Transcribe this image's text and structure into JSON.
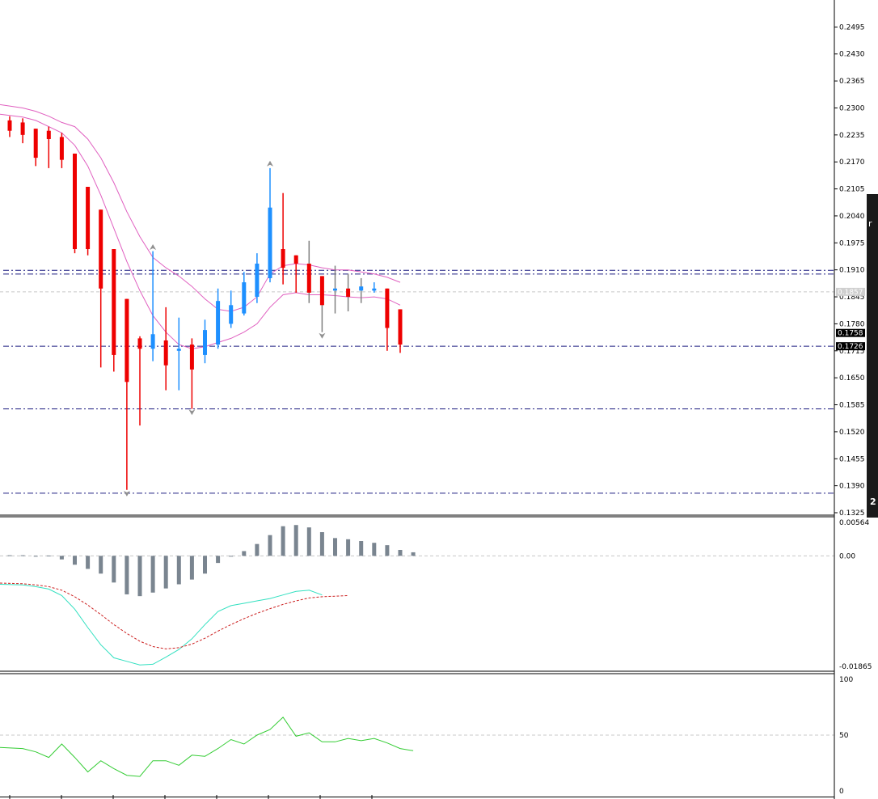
{
  "chart_data": [
    {
      "type": "candlestick",
      "ylim": [
        0.1325,
        0.256
      ],
      "y_ticks": [
        "0.2495",
        "0.2430",
        "0.2365",
        "0.2300",
        "0.2235",
        "0.2170",
        "0.2105",
        "0.2040",
        "0.1975",
        "0.1910",
        "0.1845",
        "0.1780",
        "0.1715",
        "0.1650",
        "0.1585",
        "0.1520",
        "0.1455",
        "0.1390",
        "0.1325"
      ],
      "price_tags": [
        {
          "text": "0.1857",
          "value": 0.1857,
          "style": "bid",
          "bg": "#cfcfcf",
          "fg": "#ffffff"
        },
        {
          "text": "0.1758",
          "value": 0.1758,
          "style": "mark",
          "bg": "#000000",
          "fg": "#ffffff"
        },
        {
          "text": "0.1726",
          "value": 0.1726,
          "style": "mark",
          "bg": "#000000",
          "fg": "#ffffff"
        }
      ],
      "levels": [
        0.1909,
        0.19,
        0.1726,
        0.1575,
        0.1372
      ],
      "bid_line": 0.1857,
      "candles": [
        {
          "o": 0.227,
          "h": 0.228,
          "l": 0.223,
          "c": 0.2245
        },
        {
          "o": 0.2265,
          "h": 0.2275,
          "l": 0.2215,
          "c": 0.2235
        },
        {
          "o": 0.225,
          "h": 0.225,
          "l": 0.216,
          "c": 0.218
        },
        {
          "o": 0.2245,
          "h": 0.2255,
          "l": 0.2155,
          "c": 0.2225
        },
        {
          "o": 0.223,
          "h": 0.224,
          "l": 0.2155,
          "c": 0.2175
        },
        {
          "o": 0.219,
          "h": 0.219,
          "l": 0.195,
          "c": 0.196
        },
        {
          "o": 0.211,
          "h": 0.211,
          "l": 0.1945,
          "c": 0.196
        },
        {
          "o": 0.2055,
          "h": 0.2055,
          "l": 0.1675,
          "c": 0.1865
        },
        {
          "o": 0.196,
          "h": 0.196,
          "l": 0.1665,
          "c": 0.1705
        },
        {
          "o": 0.184,
          "h": 0.184,
          "l": 0.138,
          "c": 0.164
        },
        {
          "o": 0.1745,
          "h": 0.175,
          "l": 0.1535,
          "c": 0.172
        },
        {
          "o": 0.172,
          "h": 0.1955,
          "l": 0.169,
          "c": 0.1755
        },
        {
          "o": 0.174,
          "h": 0.182,
          "l": 0.162,
          "c": 0.168
        },
        {
          "o": 0.1715,
          "h": 0.1795,
          "l": 0.162,
          "c": 0.172
        },
        {
          "o": 0.173,
          "h": 0.1745,
          "l": 0.1575,
          "c": 0.167
        },
        {
          "o": 0.1705,
          "h": 0.179,
          "l": 0.1685,
          "c": 0.1765
        },
        {
          "o": 0.173,
          "h": 0.1865,
          "l": 0.172,
          "c": 0.1835
        },
        {
          "o": 0.178,
          "h": 0.186,
          "l": 0.177,
          "c": 0.1825
        },
        {
          "o": 0.1805,
          "h": 0.1905,
          "l": 0.18,
          "c": 0.188
        },
        {
          "o": 0.1845,
          "h": 0.195,
          "l": 0.183,
          "c": 0.1925
        },
        {
          "o": 0.189,
          "h": 0.2155,
          "l": 0.188,
          "c": 0.206
        },
        {
          "o": 0.196,
          "h": 0.2095,
          "l": 0.1875,
          "c": 0.1915
        },
        {
          "o": 0.1945,
          "h": 0.1945,
          "l": 0.1855,
          "c": 0.1925
        },
        {
          "o": 0.1925,
          "h": 0.198,
          "l": 0.183,
          "c": 0.1855
        },
        {
          "o": 0.1895,
          "h": 0.1895,
          "l": 0.176,
          "c": 0.1825
        },
        {
          "o": 0.186,
          "h": 0.192,
          "l": 0.1805,
          "c": 0.1865
        },
        {
          "o": 0.1865,
          "h": 0.19,
          "l": 0.181,
          "c": 0.1845
        },
        {
          "o": 0.186,
          "h": 0.189,
          "l": 0.183,
          "c": 0.187
        },
        {
          "o": 0.186,
          "h": 0.188,
          "l": 0.1855,
          "c": 0.1865
        },
        {
          "o": 0.1865,
          "h": 0.1865,
          "l": 0.1715,
          "c": 0.177
        },
        {
          "o": 0.1815,
          "h": 0.1815,
          "l": 0.171,
          "c": 0.173
        }
      ],
      "band_upper": [
        0.2308,
        0.23,
        0.2292,
        0.228,
        0.2265,
        0.2255,
        0.2225,
        0.218,
        0.212,
        0.205,
        0.199,
        0.194,
        0.1915,
        0.1895,
        0.187,
        0.184,
        0.1815,
        0.181,
        0.182,
        0.1845,
        0.19,
        0.192,
        0.1925,
        0.1922,
        0.1915,
        0.191,
        0.191,
        0.1905,
        0.19,
        0.1892,
        0.188
      ],
      "band_lower": [
        0.2285,
        0.2278,
        0.227,
        0.2255,
        0.224,
        0.221,
        0.216,
        0.209,
        0.201,
        0.193,
        0.186,
        0.18,
        0.176,
        0.173,
        0.172,
        0.1725,
        0.1735,
        0.1745,
        0.176,
        0.178,
        0.182,
        0.185,
        0.1855,
        0.185,
        0.185,
        0.1848,
        0.1845,
        0.1843,
        0.1845,
        0.184,
        0.1825
      ],
      "fractals_up": [
        {
          "i": 11,
          "v": 0.1962
        },
        {
          "i": 20,
          "v": 0.2163
        }
      ],
      "fractals_down": [
        {
          "i": 9,
          "v": 0.1374
        },
        {
          "i": 14,
          "v": 0.157
        },
        {
          "i": 24,
          "v": 0.1754
        }
      ]
    },
    {
      "type": "macd",
      "ylim": [
        -0.01865,
        0.00564
      ],
      "y_ticks": [
        "0.00564",
        "0.00",
        "-0.01865"
      ],
      "histogram": [
        0.0001,
        0.0001,
        0.0,
        5e-05,
        -0.0006,
        -0.0015,
        -0.0022,
        -0.003,
        -0.0045,
        -0.0065,
        -0.0068,
        -0.0062,
        -0.0055,
        -0.0048,
        -0.004,
        -0.003,
        -0.0012,
        0.0,
        0.0008,
        0.002,
        0.0035,
        0.005,
        0.0052,
        0.0048,
        0.004,
        0.003,
        0.0028,
        0.0025,
        0.0022,
        0.0018,
        0.001,
        0.0006
      ],
      "macd_line": [
        -0.0048,
        -0.0049,
        -0.0052,
        -0.0056,
        -0.0067,
        -0.009,
        -0.0121,
        -0.015,
        -0.0172,
        -0.0178,
        -0.0184,
        -0.0183,
        -0.0171,
        -0.0158,
        -0.014,
        -0.0116,
        -0.0094,
        -0.0084,
        -0.008,
        -0.0076,
        -0.0072,
        -0.0066,
        -0.006,
        -0.0058,
        -0.0066
      ],
      "signal_line": [
        -0.0046,
        -0.0047,
        -0.0049,
        -0.0052,
        -0.0058,
        -0.0069,
        -0.0083,
        -0.0099,
        -0.0116,
        -0.0131,
        -0.0144,
        -0.0153,
        -0.0157,
        -0.0155,
        -0.0149,
        -0.0139,
        -0.0127,
        -0.0116,
        -0.0106,
        -0.0097,
        -0.0089,
        -0.0082,
        -0.0076,
        -0.0071,
        -0.0069,
        -0.0068,
        -0.0067
      ]
    },
    {
      "type": "line",
      "ylim": [
        0,
        100
      ],
      "y_ticks": [
        "100",
        "50",
        "0"
      ],
      "ref_level": 50,
      "values": [
        39,
        38,
        35,
        30,
        42,
        30,
        17,
        27,
        20,
        14,
        13,
        27,
        27,
        23,
        32,
        31,
        38,
        46,
        42,
        50,
        55,
        66,
        49,
        52,
        44,
        44,
        47,
        45,
        47,
        43,
        38,
        36
      ]
    }
  ],
  "colors": {
    "bull": "#1e90ff",
    "bear": "#ee0000",
    "band": "#e060c0",
    "level": "#1c1c80",
    "histogram": "#7a8590",
    "macd_main": "#32e0c0",
    "macd_signal": "#cc2020",
    "oscillator": "#33cc33",
    "grid": "#c8c8c8"
  },
  "edge_labels": [
    "r",
    "2"
  ]
}
